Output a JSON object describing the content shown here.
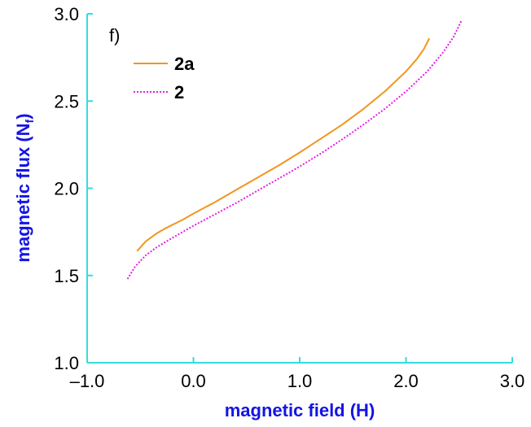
{
  "chart_data": {
    "type": "line",
    "panel_label": "f)",
    "xlabel": "magnetic field (H)",
    "ylabel_main": "magnetic flux (N",
    "ylabel_sub": "f",
    "ylabel_close": ")",
    "xlim": [
      -1.0,
      3.0
    ],
    "ylim": [
      1.0,
      3.0
    ],
    "xticks": [
      -1.0,
      0.0,
      1.0,
      2.0,
      3.0
    ],
    "xtick_labels": [
      "–1.0",
      "0.0",
      "1.0",
      "2.0",
      "3.0"
    ],
    "yticks": [
      1.0,
      1.5,
      2.0,
      2.5,
      3.0
    ],
    "ytick_labels": [
      "1.0",
      "1.5",
      "2.0",
      "2.5",
      "3.0"
    ],
    "grid": false,
    "legend_position": "top-left",
    "colors": {
      "axis": "#33dddd",
      "axis_title": "#1414e6",
      "series_2a": "#f0961e",
      "series_2": "#e61ee6"
    },
    "series": [
      {
        "name": "2a",
        "color": "#f0961e",
        "dash": "solid",
        "x": [
          -0.53,
          -0.45,
          -0.35,
          -0.25,
          -0.1,
          0.0,
          0.2,
          0.4,
          0.6,
          0.8,
          1.0,
          1.2,
          1.4,
          1.6,
          1.8,
          2.0,
          2.1,
          2.17,
          2.22
        ],
        "y": [
          1.64,
          1.695,
          1.74,
          1.775,
          1.82,
          1.855,
          1.92,
          1.99,
          2.06,
          2.13,
          2.205,
          2.285,
          2.365,
          2.455,
          2.555,
          2.67,
          2.74,
          2.8,
          2.86
        ]
      },
      {
        "name": "2",
        "color": "#e61ee6",
        "dash": "dotted",
        "x": [
          -0.62,
          -0.55,
          -0.45,
          -0.35,
          -0.2,
          0.0,
          0.2,
          0.4,
          0.6,
          0.8,
          1.0,
          1.2,
          1.4,
          1.6,
          1.8,
          2.0,
          2.2,
          2.35,
          2.45,
          2.52
        ],
        "y": [
          1.48,
          1.55,
          1.615,
          1.66,
          1.715,
          1.785,
          1.85,
          1.915,
          1.985,
          2.055,
          2.125,
          2.2,
          2.28,
          2.365,
          2.455,
          2.555,
          2.67,
          2.78,
          2.87,
          2.96
        ]
      }
    ]
  }
}
